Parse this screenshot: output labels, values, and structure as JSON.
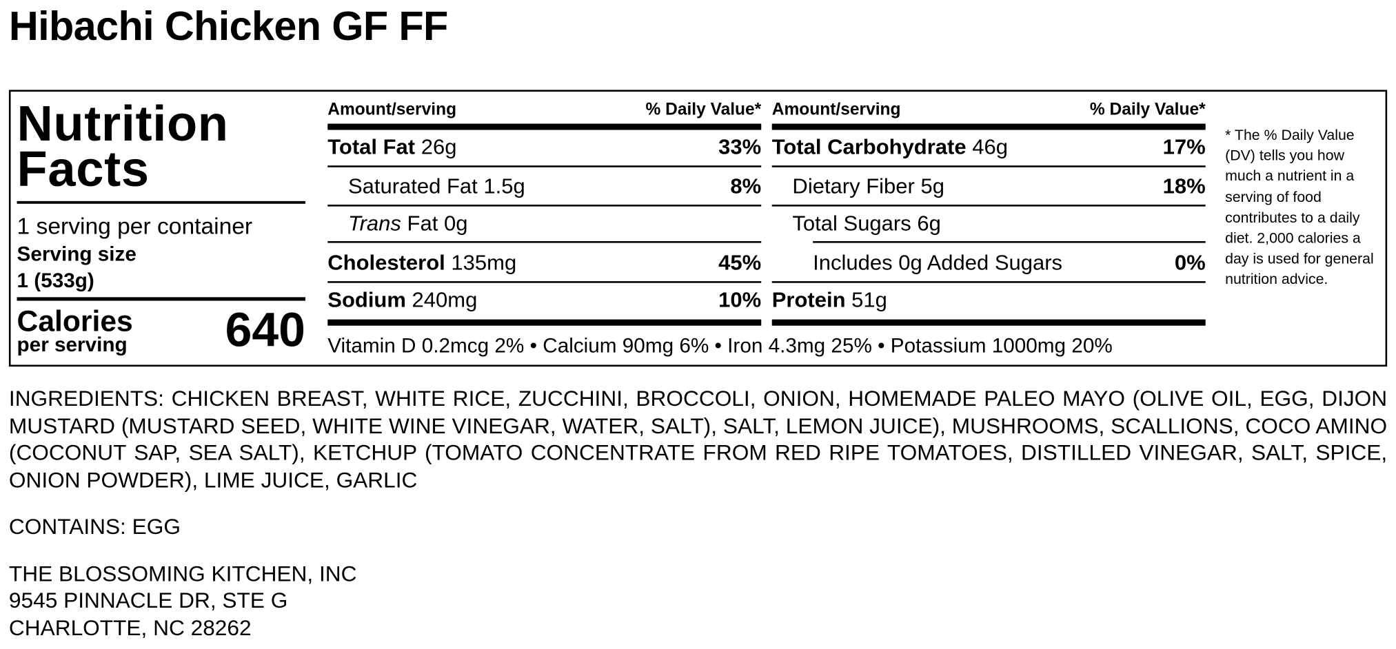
{
  "title": "Hibachi Chicken GF FF",
  "label": {
    "heading_line1": "Nutrition",
    "heading_line2": "Facts",
    "servings_per_container": "1 serving per container",
    "serving_size_label": "Serving size",
    "serving_size_value": "1 (533g)",
    "calories_label": "Calories",
    "calories_sublabel": "per serving",
    "calories_value": "640",
    "column_header_amount": "Amount/serving",
    "column_header_dv": "% Daily Value*",
    "left_rows": [
      {
        "name": "Total Fat",
        "amount": "26g",
        "dv": "33%"
      },
      {
        "name": "Saturated Fat",
        "amount": "1.5g",
        "dv": "8%"
      },
      {
        "name_italic": "Trans",
        "name": "Fat",
        "amount": "0g",
        "dv": ""
      },
      {
        "name": "Cholesterol",
        "amount": "135mg",
        "dv": "45%"
      },
      {
        "name": "Sodium",
        "amount": "240mg",
        "dv": "10%"
      }
    ],
    "right_rows": [
      {
        "name": "Total Carbohydrate",
        "amount": "46g",
        "dv": "17%"
      },
      {
        "name": "Dietary Fiber",
        "amount": "5g",
        "dv": "18%"
      },
      {
        "name": "Total Sugars",
        "amount": "6g",
        "dv": ""
      },
      {
        "name": "Includes 0g Added Sugars",
        "amount": "",
        "dv": "0%"
      },
      {
        "name": "Protein",
        "amount": "51g",
        "dv": ""
      }
    ],
    "micronutrients": "Vitamin D 0.2mcg 2% • Calcium 90mg 6% • Iron 4.3mg 25% • Potassium 1000mg 20%",
    "footnote": "* The % Daily Value (DV) tells you how much a nutrient in a serving of food contributes to a daily diet. 2,000 calories a day is used for general nutrition advice."
  },
  "ingredients": "INGREDIENTS: CHICKEN BREAST, WHITE RICE, ZUCCHINI, BROCCOLI, ONION, HOMEMADE PALEO MAYO (OLIVE OIL, EGG, DIJON MUSTARD (MUSTARD SEED, WHITE WINE VINEGAR, WATER, SALT), SALT, LEMON JUICE), MUSHROOMS, SCALLIONS, COCO AMINO (COCONUT SAP, SEA SALT), KETCHUP (TOMATO CONCENTRATE FROM RED RIPE TOMATOES, DISTILLED VINEGAR, SALT, SPICE, ONION POWDER), LIME JUICE, GARLIC",
  "contains": "CONTAINS: EGG",
  "address": {
    "line1": "THE BLOSSOMING KITCHEN, INC",
    "line2": "9545 PINNACLE DR, STE G",
    "line3": "CHARLOTTE, NC 28262"
  }
}
